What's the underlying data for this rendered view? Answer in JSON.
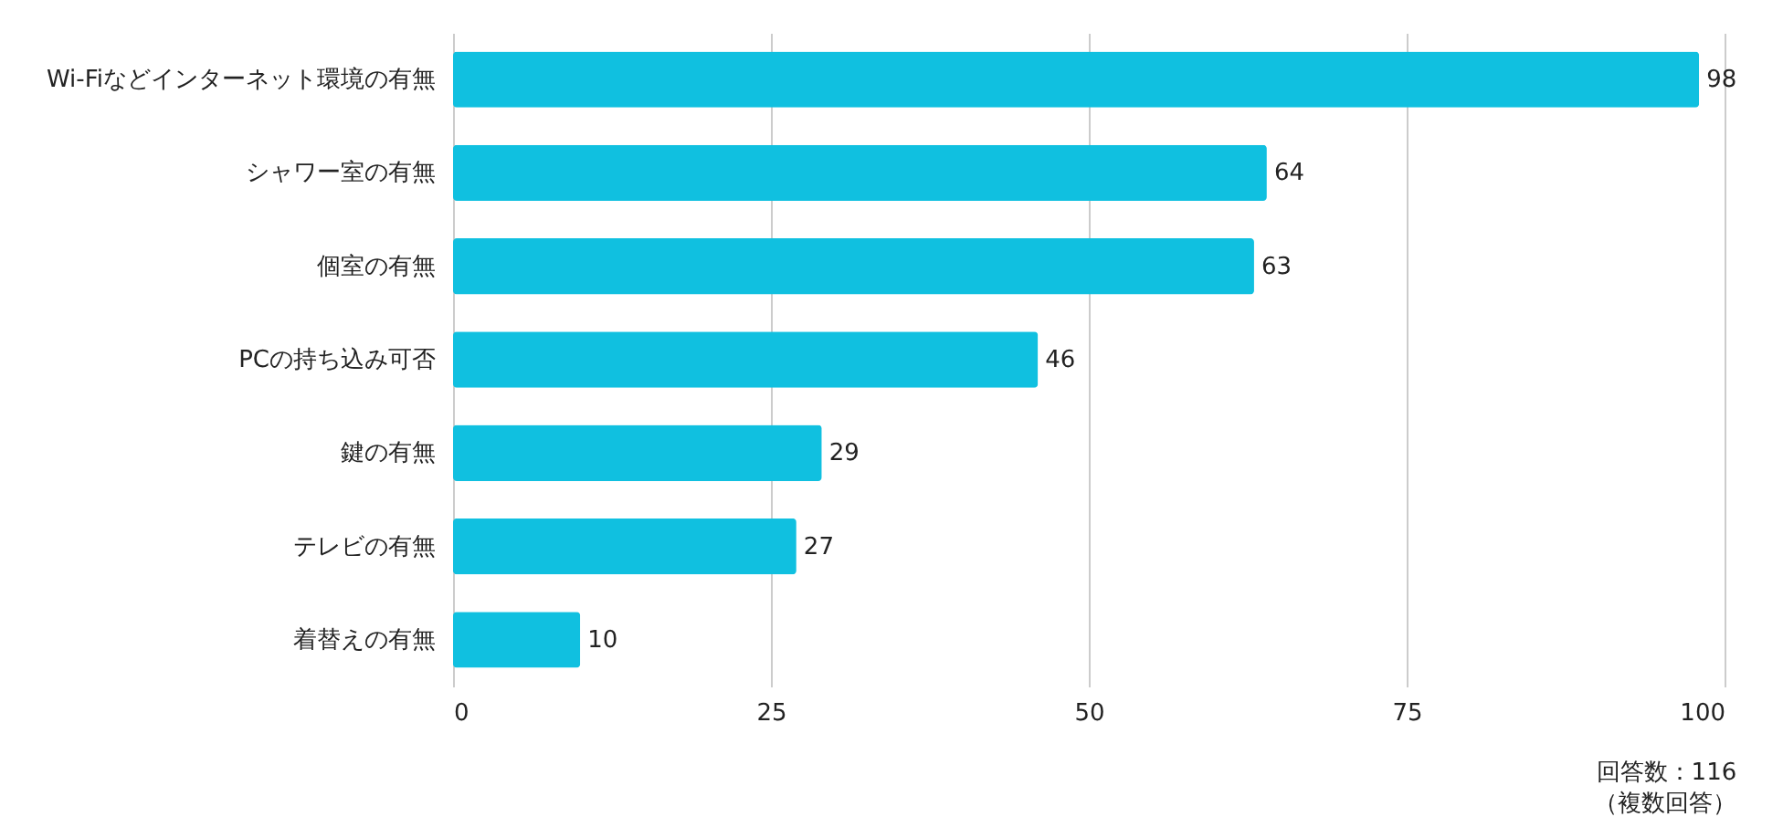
{
  "chart_data": {
    "type": "bar",
    "orientation": "horizontal",
    "categories": [
      "Wi-Fiなどインターネット環境の有無",
      "シャワー室の有無",
      "個室の有無",
      "PCの持ち込み可否",
      "鍵の有無",
      "テレビの有無",
      "着替えの有無"
    ],
    "values": [
      98,
      64,
      63,
      46,
      29,
      27,
      10
    ],
    "color": "#10c0e0",
    "xlim": [
      0,
      100
    ],
    "xticks": [
      0,
      25,
      50,
      75,
      100
    ],
    "grid": "x",
    "data_labels": true,
    "annotations": [
      "回答数：116",
      "（複数回答）"
    ]
  }
}
